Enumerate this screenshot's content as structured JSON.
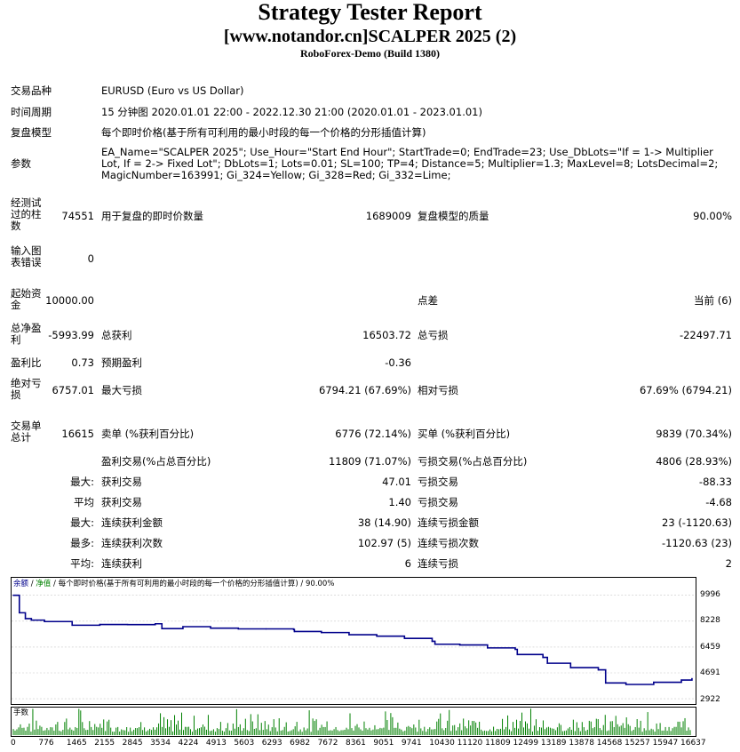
{
  "header": {
    "title": "Strategy Tester Report",
    "subtitle": "[www.notandor.cn]SCALPER 2025 (2)",
    "server": "RoboForex-Demo (Build 1380)"
  },
  "info": {
    "symbol_label": "交易品种",
    "symbol_value": "EURUSD (Euro vs US Dollar)",
    "period_label": "时间周期",
    "period_value": "15 分钟图 2020.01.01 22:00 - 2022.12.30 21:00 (2020.01.01 - 2023.01.01)",
    "model_label": "复盘模型",
    "model_value": "每个即时价格(基于所有可利用的最小时段的每一个价格的分形插值计算)",
    "params_label": "参数",
    "params_value": "EA_Name=\"SCALPER 2025\"; Use_Hour=\"Start End Hour\"; StartTrade=0; EndTrade=23; Use_DbLots=\"If = 1-> Multiplier Lot, If = 2-> Fixed Lot\"; DbLots=1; Lots=0.01; SL=100; TP=4; Distance=5; Multiplier=1.3; MaxLevel=8; LotsDecimal=2; MagicNumber=163991; Gi_324=Yellow; Gi_328=Red; Gi_332=Lime;"
  },
  "stats": {
    "bars_label": "经测试过的柱数",
    "bars_value": "74551",
    "ticks_label": "用于复盘的即时价数量",
    "ticks_value": "1689009",
    "quality_label": "复盘模型的质量",
    "quality_value": "90.00%",
    "errors_label": "输入图表错误",
    "errors_value": "0",
    "deposit_label": "起始资金",
    "deposit_value": "10000.00",
    "spread_label": "点差",
    "spread_value": "当前 (6)",
    "net_label": "总净盈利",
    "net_value": "-5993.99",
    "gross_profit_label": "总获利",
    "gross_profit_value": "16503.72",
    "gross_loss_label": "总亏损",
    "gross_loss_value": "-22497.71",
    "pf_label": "盈利比",
    "pf_value": "0.73",
    "payoff_label": "预期盈利",
    "payoff_value": "-0.36",
    "abs_dd_label": "绝对亏损",
    "abs_dd_value": "6757.01",
    "max_dd_label": "最大亏损",
    "max_dd_value": "6794.21 (67.69%)",
    "rel_dd_label": "相对亏损",
    "rel_dd_value": "67.69% (6794.21)",
    "trades_label": "交易单总计",
    "trades_value": "16615",
    "short_label": "卖单 (%获利百分比)",
    "short_value": "6776 (72.14%)",
    "long_label": "买单 (%获利百分比)",
    "long_value": "9839 (70.34%)",
    "profit_trades_label": "盈利交易(%占总百分比)",
    "profit_trades_value": "11809 (71.07%)",
    "loss_trades_label": "亏损交易(%占总百分比)",
    "loss_trades_value": "4806 (28.93%)",
    "largest_label": "最大:",
    "largest_profit_label": "获利交易",
    "largest_profit_value": "47.01",
    "largest_loss_label": "亏损交易",
    "largest_loss_value": "-88.33",
    "average_label": "平均",
    "average_profit_label": "获利交易",
    "average_profit_value": "1.40",
    "average_loss_label": "亏损交易",
    "average_loss_value": "-4.68",
    "max_label": "最大:",
    "max_consec_wins_label": "连续获利金额",
    "max_consec_wins_value": "38 (14.90)",
    "max_consec_losses_label": "连续亏损金额",
    "max_consec_losses_value": "23 (-1120.63)",
    "maximal_label": "最多:",
    "maximal_consec_profit_label": "连续获利次数",
    "maximal_consec_profit_value": "102.97 (5)",
    "maximal_consec_loss_label": "连续亏损次数",
    "maximal_consec_loss_value": "-1120.63 (23)",
    "avg_label": "平均:",
    "avg_consec_wins_label": "连续获利",
    "avg_consec_wins_value": "6",
    "avg_consec_losses_label": "连续亏损",
    "avg_consec_losses_value": "2"
  },
  "chart_data": {
    "type": "line",
    "legend": {
      "balance": "余额",
      "sep1": " / ",
      "equity": "净值",
      "sep2": " / ",
      "description": "每个即时价格(基于所有可利用的最小时段的每一个价格的分形插值计算) / 90.00%"
    },
    "volume_label": "手数",
    "colors": {
      "balance": "#00008b",
      "equity": "#008000",
      "volume": "#008000"
    },
    "y_ticks": [
      "9996",
      "8228",
      "6459",
      "4691",
      "2922"
    ],
    "y_tick_values": [
      9996,
      8228,
      6459,
      4691,
      2922
    ],
    "x_ticks": [
      "0",
      "776",
      "1465",
      "2155",
      "2845",
      "3534",
      "4224",
      "4913",
      "5603",
      "6293",
      "6982",
      "7672",
      "8361",
      "9051",
      "9741",
      "10430",
      "11120",
      "11809",
      "12499",
      "13189",
      "13878",
      "14568",
      "15257",
      "15947",
      "16637"
    ],
    "ylim": [
      2922,
      9996
    ],
    "xlim": [
      0,
      16637
    ],
    "series": [
      {
        "x": [
          0,
          150,
          300,
          450,
          776,
          1465,
          2155,
          2845,
          3534,
          3700,
          4224,
          4913,
          5603,
          6293,
          6982,
          7000,
          7672,
          8361,
          9051,
          9741,
          10430,
          10500,
          11120,
          11809,
          12499,
          12550,
          13189,
          13300,
          13878,
          14568,
          14750,
          15257,
          15947,
          16637,
          16900
        ],
        "y": [
          9996,
          8800,
          8400,
          8300,
          8200,
          7950,
          8000,
          7990,
          8050,
          7720,
          7850,
          7750,
          7700,
          7700,
          7650,
          7520,
          7450,
          7300,
          7200,
          7050,
          6850,
          6650,
          6600,
          6400,
          6300,
          5950,
          5750,
          5350,
          5050,
          4900,
          4000,
          3900,
          4050,
          4200,
          4300
        ]
      }
    ]
  }
}
